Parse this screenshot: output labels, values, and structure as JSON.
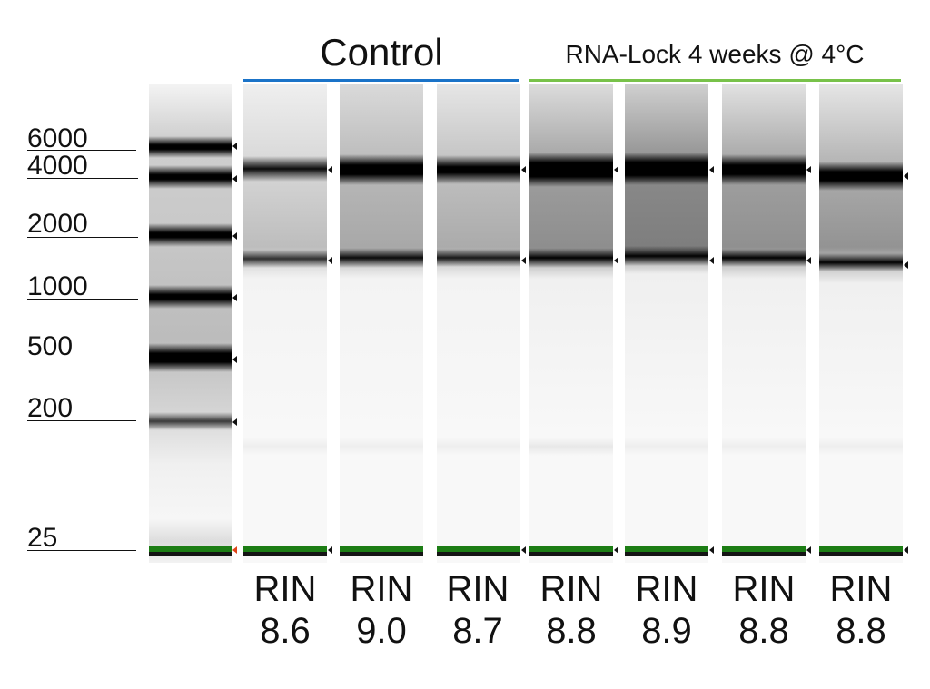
{
  "groups": {
    "control": {
      "title": "Control",
      "color": "#1a73c8"
    },
    "lock": {
      "title": "RNA-Lock 4 weeks @ 4°C",
      "color": "#78c24a"
    }
  },
  "ladder": {
    "labels": [
      "6000",
      "4000",
      "2000",
      "1000",
      "500",
      "200",
      "25"
    ]
  },
  "samples": [
    {
      "rin_label": "RIN",
      "rin_value": "8.6"
    },
    {
      "rin_label": "RIN",
      "rin_value": "9.0"
    },
    {
      "rin_label": "RIN",
      "rin_value": "8.7"
    },
    {
      "rin_label": "RIN",
      "rin_value": "8.8"
    },
    {
      "rin_label": "RIN",
      "rin_value": "8.9"
    },
    {
      "rin_label": "RIN",
      "rin_value": "8.8"
    },
    {
      "rin_label": "RIN",
      "rin_value": "8.8"
    }
  ],
  "colors": {
    "lower_marker": "#1c7d14",
    "marker_arrow": "#e0451a"
  }
}
